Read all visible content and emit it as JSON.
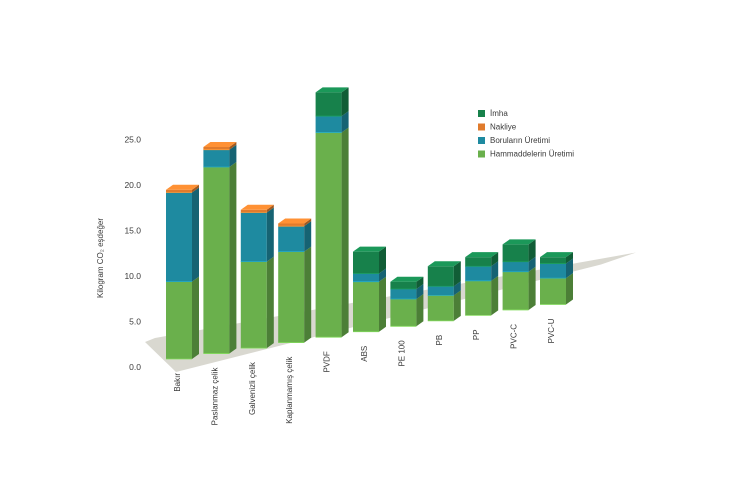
{
  "chart_data": {
    "type": "bar",
    "stacked": true,
    "three_d": true,
    "ylabel": "Kilogram CO₂ eşdeğer",
    "ylim": [
      0,
      25
    ],
    "yticks": [
      "0.0",
      "5.0",
      "10.0",
      "15.0",
      "20.0",
      "25.0"
    ],
    "legend_position": "top-right",
    "categories": [
      "Bakır",
      "Paslanmaz çelik",
      "Galvenizli çelik",
      "Kaplanmamış çelik",
      "PVDF",
      "ABS",
      "PE 100",
      "PB",
      "PP",
      "PVC-C",
      "PVC-U"
    ],
    "series": [
      {
        "name": "Hammaddelerin Üretimi",
        "color": "#6ab04c",
        "values": [
          8.5,
          20.5,
          9.5,
          10.0,
          22.5,
          5.5,
          3.0,
          2.8,
          3.8,
          4.2,
          2.9
        ]
      },
      {
        "name": "Boruların Üretimi",
        "color": "#1e8aa0",
        "values": [
          9.8,
          1.9,
          5.4,
          2.8,
          1.8,
          0.9,
          1.1,
          1.0,
          1.6,
          1.1,
          1.6
        ]
      },
      {
        "name": "Nakliye",
        "color": "#e07b2c",
        "values": [
          0.3,
          0.3,
          0.3,
          0.3,
          0.0,
          0.0,
          0.0,
          0.0,
          0.0,
          0.0,
          0.0
        ]
      },
      {
        "name": "İmha",
        "color": "#17814b",
        "values": [
          0.0,
          0.0,
          0.0,
          0.0,
          2.6,
          2.4,
          0.8,
          2.2,
          1.0,
          1.9,
          0.7
        ]
      }
    ]
  }
}
